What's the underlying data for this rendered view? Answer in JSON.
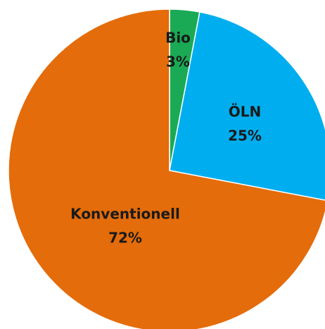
{
  "chart_data": {
    "type": "pie",
    "categories": [
      "Bio",
      "ÖLN",
      "Konventionell"
    ],
    "values": [
      3,
      25,
      72
    ],
    "value_labels": [
      "3%",
      "25%",
      "72%"
    ],
    "colors": [
      "#1aaa55",
      "#00aeef",
      "#e46c0a"
    ]
  }
}
